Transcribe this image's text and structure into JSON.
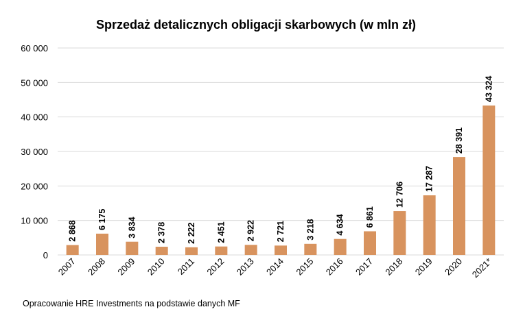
{
  "chart_data": {
    "type": "bar",
    "title": "Sprzedaż detalicznych obligacji skarbowych (w mln zł)",
    "categories": [
      "2007",
      "2008",
      "2009",
      "2010",
      "2011",
      "2012",
      "2013",
      "2014",
      "2015",
      "2016",
      "2017",
      "2018",
      "2019",
      "2020",
      "2021*"
    ],
    "values": [
      2868,
      6175,
      3834,
      2378,
      2222,
      2451,
      2922,
      2721,
      3218,
      4634,
      6861,
      12706,
      17287,
      28391,
      43324
    ],
    "value_labels": [
      "2 868",
      "6 175",
      "3 834",
      "2 378",
      "2 222",
      "2 451",
      "2 922",
      "2 721",
      "3 218",
      "4 634",
      "6 861",
      "12 706",
      "17 287",
      "28 391",
      "43 324"
    ],
    "y_ticks": [
      0,
      10000,
      20000,
      30000,
      40000,
      50000,
      60000
    ],
    "y_tick_labels": [
      "0",
      "10 000",
      "20 000",
      "30 000",
      "40 000",
      "50 000",
      "60 000"
    ],
    "ylim": [
      0,
      60000
    ],
    "grid": true,
    "legend": "none",
    "bar_color": "#D8935E",
    "gridline_color": "#D9D9D9"
  },
  "source_note": "Opracowanie HRE Investments na podstawie danych MF"
}
